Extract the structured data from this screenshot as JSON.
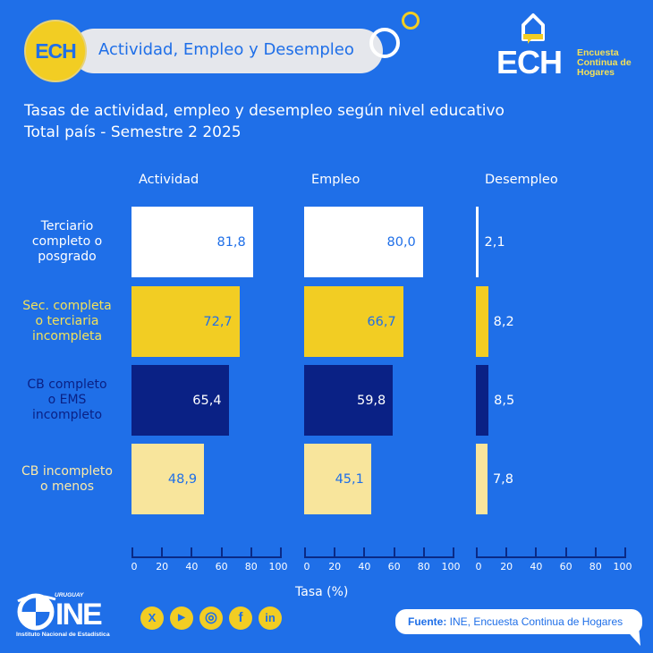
{
  "header": {
    "badge": "ECH",
    "title": "Actividad, Empleo y Desempleo"
  },
  "brand_logo": {
    "letters": "ECH",
    "text_lines": [
      "Encuesta",
      "Continua de",
      "Hogares"
    ]
  },
  "colors": {
    "background": "#1f6fe8",
    "white_bar": "#ffffff",
    "yellow_bar": "#f2cd23",
    "navy_bar": "#0a2185",
    "light_yellow_bar": "#f8e59c",
    "axis": "#0a2a86"
  },
  "chart_data": {
    "type": "bar",
    "orientation": "horizontal",
    "title": "Tasas de actividad, empleo y desempleo según nivel educativo",
    "subtitle": "Total país - Semestre 2 2025",
    "xlabel": "Tasa (%)",
    "ylabel": "",
    "xlim": [
      0,
      100
    ],
    "xticks": [
      0,
      20,
      40,
      60,
      80,
      100
    ],
    "grid": false,
    "legend": "none",
    "categories": [
      "Terciario completo o posgrado",
      "Sec. completa o terciaria incompleta",
      "CB completo o EMS incompleto",
      "CB incompleto o menos"
    ],
    "category_label_lines": [
      [
        "Terciario",
        "completo o",
        "posgrado"
      ],
      [
        "Sec. completa",
        "o terciaria",
        "incompleta"
      ],
      [
        "CB completo",
        "o EMS",
        "incompleto"
      ],
      [
        "CB incompleto",
        "o menos"
      ]
    ],
    "series": [
      {
        "name": "Actividad",
        "values": [
          81.8,
          72.7,
          65.4,
          48.9
        ],
        "labels": [
          "81,8",
          "72,7",
          "65,4",
          "48,9"
        ]
      },
      {
        "name": "Empleo",
        "values": [
          80.0,
          66.7,
          59.8,
          45.1
        ],
        "labels": [
          "80,0",
          "66,7",
          "59,8",
          "45,1"
        ]
      },
      {
        "name": "Desempleo",
        "values": [
          2.1,
          8.2,
          8.5,
          7.8
        ],
        "labels": [
          "2,1",
          "8,2",
          "8,5",
          "7,8"
        ]
      }
    ]
  },
  "footer": {
    "ine": {
      "country": "URUGUAY",
      "letters": "INE",
      "name": "Instituto Nacional de Estadística"
    },
    "social_icons": [
      {
        "name": "x-icon",
        "glyph": "X"
      },
      {
        "name": "youtube-icon",
        "glyph": "▶"
      },
      {
        "name": "instagram-icon",
        "glyph": "◎"
      },
      {
        "name": "facebook-icon",
        "glyph": "f"
      },
      {
        "name": "linkedin-icon",
        "glyph": "in"
      }
    ],
    "source_label": "Fuente:",
    "source_text": " INE, Encuesta Continua de Hogares"
  }
}
